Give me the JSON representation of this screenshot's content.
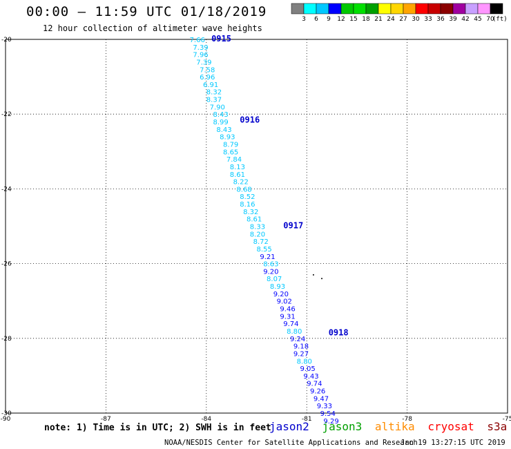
{
  "header": {
    "title": "00:00 – 11:59 UTC 01/18/2019",
    "subtitle": "12 hour collection of altimeter wave heights"
  },
  "colorbar": {
    "colors": [
      "#808080",
      "#00ffff",
      "#00c8ff",
      "#0000ff",
      "#00c800",
      "#00e000",
      "#00a000",
      "#ffff00",
      "#ffd700",
      "#ffa500",
      "#ff0000",
      "#c80000",
      "#8b0000",
      "#a000a0",
      "#c8a0ff",
      "#ff96ff",
      "#000000"
    ],
    "labels": [
      "3",
      "6",
      "9",
      "12",
      "15",
      "18",
      "21",
      "24",
      "27",
      "30",
      "33",
      "36",
      "39",
      "42",
      "45",
      "70"
    ],
    "unit": "(ft)"
  },
  "chart_data": {
    "type": "scatter",
    "xlim": [
      -90,
      -75
    ],
    "ylim": [
      -30,
      -20
    ],
    "x_ticks": [
      "-90",
      "-87",
      "-84",
      "-81",
      "-78",
      "-75"
    ],
    "y_ticks": [
      "-20",
      "-22",
      "-24",
      "-26",
      "-28",
      "-30"
    ],
    "grid": true,
    "time_labels": [
      {
        "label": "0915",
        "lon": -83.85,
        "lat": -19.98
      },
      {
        "label": "0916",
        "lon": -83.0,
        "lat": -22.15
      },
      {
        "label": "0917",
        "lon": -81.7,
        "lat": -24.98
      },
      {
        "label": "0918",
        "lon": -80.35,
        "lat": -27.85
      }
    ],
    "points": [
      {
        "lon": -84.5,
        "lat": -20.0,
        "v": "7.66",
        "c": "#00c8ff"
      },
      {
        "lon": -84.4,
        "lat": -20.2,
        "v": "7.39",
        "c": "#00c8ff"
      },
      {
        "lon": -84.4,
        "lat": -20.4,
        "v": "7.96",
        "c": "#00c8ff"
      },
      {
        "lon": -84.3,
        "lat": -20.6,
        "v": "7.39",
        "c": "#00c8ff"
      },
      {
        "lon": -84.2,
        "lat": -20.8,
        "v": "7.58",
        "c": "#00c8ff"
      },
      {
        "lon": -84.2,
        "lat": -21.0,
        "v": "6.96",
        "c": "#00c8ff"
      },
      {
        "lon": -84.1,
        "lat": -21.2,
        "v": "6.91",
        "c": "#00c8ff"
      },
      {
        "lon": -84.0,
        "lat": -21.4,
        "v": "8.32",
        "c": "#00c8ff"
      },
      {
        "lon": -84.0,
        "lat": -21.6,
        "v": "8.37",
        "c": "#00c8ff"
      },
      {
        "lon": -83.9,
        "lat": -21.8,
        "v": "7.90",
        "c": "#00c8ff"
      },
      {
        "lon": -83.8,
        "lat": -22.0,
        "v": "8.43",
        "c": "#00c8ff"
      },
      {
        "lon": -83.8,
        "lat": -22.2,
        "v": "8.99",
        "c": "#00c8ff"
      },
      {
        "lon": -83.7,
        "lat": -22.4,
        "v": "8.43",
        "c": "#00c8ff"
      },
      {
        "lon": -83.6,
        "lat": -22.6,
        "v": "8.93",
        "c": "#00c8ff"
      },
      {
        "lon": -83.5,
        "lat": -22.8,
        "v": "8.79",
        "c": "#00c8ff"
      },
      {
        "lon": -83.5,
        "lat": -23.0,
        "v": "8.65",
        "c": "#00c8ff"
      },
      {
        "lon": -83.4,
        "lat": -23.2,
        "v": "7.84",
        "c": "#00c8ff"
      },
      {
        "lon": -83.3,
        "lat": -23.4,
        "v": "8.13",
        "c": "#00c8ff"
      },
      {
        "lon": -83.3,
        "lat": -23.6,
        "v": "8.61",
        "c": "#00c8ff"
      },
      {
        "lon": -83.2,
        "lat": -23.8,
        "v": "8.22",
        "c": "#00c8ff"
      },
      {
        "lon": -83.1,
        "lat": -24.0,
        "v": "8.68",
        "c": "#00c8ff"
      },
      {
        "lon": -83.0,
        "lat": -24.2,
        "v": "8.52",
        "c": "#00c8ff"
      },
      {
        "lon": -83.0,
        "lat": -24.4,
        "v": "8.16",
        "c": "#00c8ff"
      },
      {
        "lon": -82.9,
        "lat": -24.6,
        "v": "8.32",
        "c": "#00c8ff"
      },
      {
        "lon": -82.8,
        "lat": -24.8,
        "v": "8.61",
        "c": "#00c8ff"
      },
      {
        "lon": -82.7,
        "lat": -25.0,
        "v": "8.33",
        "c": "#00c8ff"
      },
      {
        "lon": -82.7,
        "lat": -25.2,
        "v": "8.20",
        "c": "#00c8ff"
      },
      {
        "lon": -82.6,
        "lat": -25.4,
        "v": "8.72",
        "c": "#00c8ff"
      },
      {
        "lon": -82.5,
        "lat": -25.6,
        "v": "8.55",
        "c": "#00c8ff"
      },
      {
        "lon": -82.4,
        "lat": -25.8,
        "v": "9.21",
        "c": "#0000ff"
      },
      {
        "lon": -82.3,
        "lat": -26.0,
        "v": "8.63",
        "c": "#00c8ff"
      },
      {
        "lon": -82.3,
        "lat": -26.2,
        "v": "9.20",
        "c": "#0000ff"
      },
      {
        "lon": -82.2,
        "lat": -26.4,
        "v": "8.07",
        "c": "#00c8ff"
      },
      {
        "lon": -82.1,
        "lat": -26.6,
        "v": "8.93",
        "c": "#00c8ff"
      },
      {
        "lon": -82.0,
        "lat": -26.8,
        "v": "9.20",
        "c": "#0000ff"
      },
      {
        "lon": -81.9,
        "lat": -27.0,
        "v": "9.02",
        "c": "#0000ff"
      },
      {
        "lon": -81.8,
        "lat": -27.2,
        "v": "9.46",
        "c": "#0000ff"
      },
      {
        "lon": -81.8,
        "lat": -27.4,
        "v": "9.31",
        "c": "#0000ff"
      },
      {
        "lon": -81.7,
        "lat": -27.6,
        "v": "9.74",
        "c": "#0000ff"
      },
      {
        "lon": -81.6,
        "lat": -27.8,
        "v": "8.80",
        "c": "#00c8ff"
      },
      {
        "lon": -81.5,
        "lat": -28.0,
        "v": "9.24",
        "c": "#0000ff"
      },
      {
        "lon": -81.4,
        "lat": -28.2,
        "v": "9.18",
        "c": "#0000ff"
      },
      {
        "lon": -81.4,
        "lat": -28.4,
        "v": "9.27",
        "c": "#0000ff"
      },
      {
        "lon": -81.3,
        "lat": -28.6,
        "v": "8.80",
        "c": "#00c8ff"
      },
      {
        "lon": -81.2,
        "lat": -28.8,
        "v": "9.05",
        "c": "#0000ff"
      },
      {
        "lon": -81.1,
        "lat": -29.0,
        "v": "9.43",
        "c": "#0000ff"
      },
      {
        "lon": -81.0,
        "lat": -29.2,
        "v": "9.74",
        "c": "#0000ff"
      },
      {
        "lon": -80.9,
        "lat": -29.4,
        "v": "9.26",
        "c": "#0000ff"
      },
      {
        "lon": -80.8,
        "lat": -29.6,
        "v": "9.47",
        "c": "#0000ff"
      },
      {
        "lon": -80.7,
        "lat": -29.8,
        "v": "9.33",
        "c": "#0000ff"
      },
      {
        "lon": -80.6,
        "lat": -30.0,
        "v": "9.54",
        "c": "#0000ff"
      },
      {
        "lon": -80.5,
        "lat": -30.2,
        "v": "9.29",
        "c": "#0000ff"
      }
    ],
    "land": [
      {
        "lon": -80.8,
        "lat": -26.3
      },
      {
        "lon": -80.55,
        "lat": -26.4
      }
    ]
  },
  "footer": {
    "note": "note: 1) Time is in UTC; 2) SWH is in feet",
    "credit": "NOAA/NESDIS Center for Satellite Applications and Research",
    "stamp": "Jan 19 13:27:15 UTC 2019",
    "satellites": [
      {
        "name": "jason2",
        "color": "#0000cc"
      },
      {
        "name": "jason3",
        "color": "#00a000"
      },
      {
        "name": "altika",
        "color": "#ff8c00"
      },
      {
        "name": "cryosat",
        "color": "#ff0000"
      },
      {
        "name": "s3a",
        "color": "#8b0000"
      }
    ]
  }
}
